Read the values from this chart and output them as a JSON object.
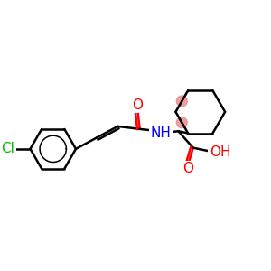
{
  "bg_color": "#ffffff",
  "bond_color": "#000000",
  "bond_width": 1.8,
  "atom_colors": {
    "O": "#ff0000",
    "N": "#0000ff",
    "Cl": "#00bb00",
    "C": "#000000"
  },
  "font_size_atom": 11,
  "highlight_color": "#e89090",
  "highlight_alpha": 0.85,
  "xlim": [
    0,
    10
  ],
  "ylim": [
    0,
    10
  ]
}
